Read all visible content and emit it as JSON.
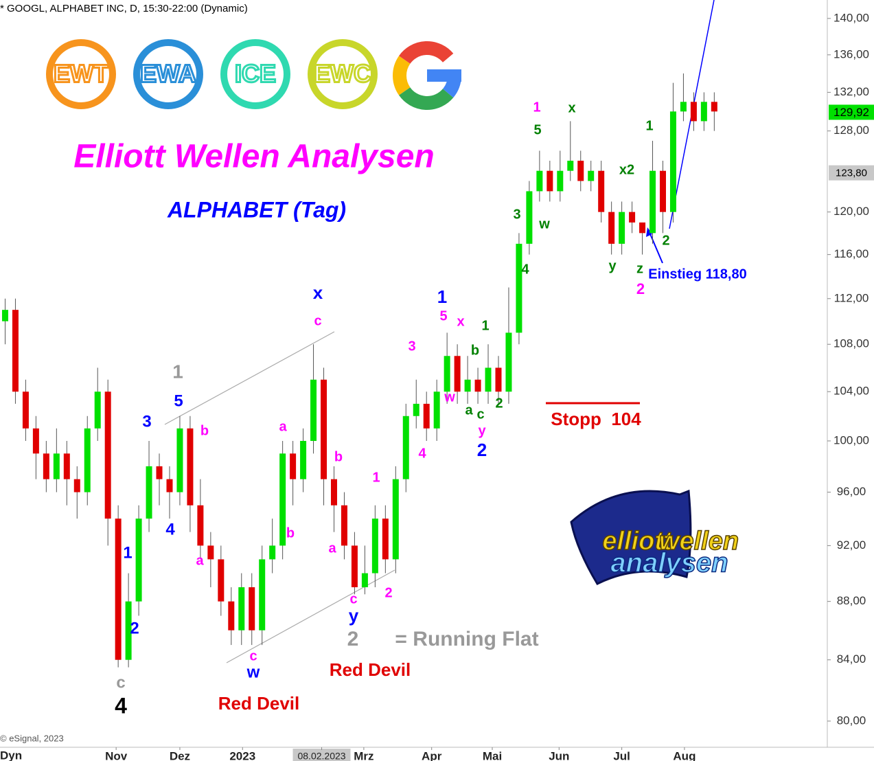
{
  "header": "* GOOGL, ALPHABET INC, D, 15:30-22:00 (Dynamic)",
  "title": "Elliott Wellen Analysen",
  "subtitle": "ALPHABET (Tag)",
  "logos": [
    "EWT",
    "EWA",
    "ICE",
    "EWC"
  ],
  "copyright": "© eSignal, 2023",
  "corner_label": "Dyn",
  "brand": [
    "elliott",
    "wellen",
    "analysen"
  ],
  "chart_data": {
    "type": "candlestick",
    "log_scale": true,
    "up_color": "#00e000",
    "down_color": "#e00000",
    "ylim": [
      78.35,
      142.07
    ],
    "xlim": [
      -0.5,
      80
    ],
    "yticks": [
      {
        "value": 80,
        "label": "80,00"
      },
      {
        "value": 84,
        "label": "84,00"
      },
      {
        "value": 88,
        "label": "88,00"
      },
      {
        "value": 92,
        "label": "92,00"
      },
      {
        "value": 96,
        "label": "96,00"
      },
      {
        "value": 100,
        "label": "100,00"
      },
      {
        "value": 104,
        "label": "104,00"
      },
      {
        "value": 108,
        "label": "108,00"
      },
      {
        "value": 112,
        "label": "112,00"
      },
      {
        "value": 116,
        "label": "116,00"
      },
      {
        "value": 120,
        "label": "120,00"
      },
      {
        "value": 128,
        "label": "128,00"
      },
      {
        "value": 132,
        "label": "132,00"
      },
      {
        "value": 136,
        "label": "136,00"
      },
      {
        "value": 140,
        "label": "140,00"
      }
    ],
    "xticks": [
      {
        "value": 10.8,
        "label": "Nov"
      },
      {
        "value": 17,
        "label": "Dez"
      },
      {
        "value": 23.1,
        "label": "2023"
      },
      {
        "value": 30.8,
        "label": "08.02.2023",
        "highlight": true
      },
      {
        "value": 34.9,
        "label": "Mrz"
      },
      {
        "value": 41.5,
        "label": "Apr"
      },
      {
        "value": 47.4,
        "label": "Mai"
      },
      {
        "value": 53.9,
        "label": "Jun"
      },
      {
        "value": 60,
        "label": "Jul"
      },
      {
        "value": 66.1,
        "label": "Aug"
      }
    ],
    "series": {
      "open": [
        110,
        111,
        104,
        101,
        99,
        97,
        99,
        97,
        96,
        101,
        104,
        94,
        84,
        88,
        94,
        98,
        97,
        96,
        101,
        95,
        92,
        91,
        88,
        86,
        89,
        86,
        91,
        92,
        99,
        97,
        100,
        105,
        97,
        95,
        92,
        89,
        90,
        94,
        91,
        97,
        102,
        103,
        101,
        104,
        107,
        104,
        105,
        104,
        106,
        104,
        109,
        117,
        122,
        124,
        122,
        124,
        125,
        123,
        124,
        120,
        117,
        120,
        119,
        118,
        124,
        120,
        130,
        131,
        129,
        131
      ],
      "high": [
        112,
        112,
        105,
        102,
        100,
        101,
        100,
        98,
        102,
        106,
        105,
        95,
        90,
        95,
        100,
        99,
        98,
        102,
        102,
        97,
        93,
        92,
        89,
        90,
        90,
        92,
        94,
        100,
        100,
        101,
        108,
        106,
        98,
        96,
        93,
        92,
        95,
        95,
        98,
        103,
        105,
        104,
        105,
        109,
        108,
        107,
        106,
        108,
        107,
        113,
        118,
        123,
        126,
        125,
        126,
        129,
        126,
        125,
        125,
        121,
        121,
        121,
        119,
        127,
        125,
        133,
        134,
        132,
        132,
        132
      ],
      "low": [
        108,
        103,
        100,
        97,
        96,
        96,
        95,
        94,
        95,
        100,
        92,
        83.5,
        83.5,
        87,
        93,
        95,
        94,
        95,
        93,
        91,
        89,
        87,
        85,
        85,
        85,
        85,
        90,
        91,
        95,
        96,
        99,
        95,
        93,
        91,
        88.5,
        88.5,
        89,
        90,
        90,
        96,
        101,
        100,
        100,
        103,
        103,
        103,
        103,
        103,
        103,
        103,
        108,
        116,
        121,
        121,
        121,
        123,
        122,
        122,
        119,
        116,
        116,
        118,
        116,
        117,
        118,
        119,
        129,
        128,
        128,
        128
      ],
      "close": [
        111,
        104,
        101,
        99,
        97,
        99,
        97,
        96,
        101,
        104,
        94,
        84,
        88,
        94,
        98,
        97,
        96,
        101,
        95,
        92,
        91,
        88,
        86,
        89,
        86,
        91,
        92,
        99,
        97,
        100,
        105,
        97,
        95,
        92,
        89,
        90,
        94,
        91,
        97,
        102,
        103,
        101,
        104,
        107,
        104,
        105,
        104,
        106,
        104,
        109,
        117,
        122,
        124,
        122,
        124,
        125,
        123,
        124,
        120,
        117,
        120,
        119,
        118,
        124,
        120,
        130,
        131,
        129,
        131,
        130
      ]
    },
    "current_price": {
      "value": 129.92,
      "label": "129,92",
      "color": "#00e000"
    },
    "marker_price": {
      "value": 123.8,
      "label": "123,80",
      "color": "#c8c8c8"
    },
    "annotations": [
      {
        "text": "c",
        "color": "#999999"
      },
      {
        "text": "4",
        "color": "#000000"
      },
      {
        "text": "1",
        "color": "#0000ff"
      },
      {
        "text": "2",
        "color": "#0000ff"
      },
      {
        "text": "3",
        "color": "#0000ff"
      },
      {
        "text": "5",
        "color": "#0000ff"
      },
      {
        "text": "1",
        "color": "#999999"
      },
      {
        "text": "4",
        "color": "#0000ff"
      },
      {
        "text": "b",
        "color": "#ff00ff"
      },
      {
        "text": "a",
        "color": "#ff00ff"
      },
      {
        "text": "c",
        "color": "#ff00ff"
      },
      {
        "text": "w",
        "color": "#0000ff"
      },
      {
        "text": "a",
        "color": "#ff00ff"
      },
      {
        "text": "b",
        "color": "#ff00ff"
      },
      {
        "text": "x",
        "color": "#0000ff"
      },
      {
        "text": "c",
        "color": "#ff00ff"
      },
      {
        "text": "b",
        "color": "#ff00ff"
      },
      {
        "text": "a",
        "color": "#ff00ff"
      },
      {
        "text": "c",
        "color": "#ff00ff"
      },
      {
        "text": "y",
        "color": "#0000ff"
      },
      {
        "text": "1",
        "color": "#ff00ff"
      },
      {
        "text": "2",
        "color": "#ff00ff"
      },
      {
        "text": "3",
        "color": "#ff00ff"
      },
      {
        "text": "4",
        "color": "#ff00ff"
      },
      {
        "text": "1",
        "color": "#0000ff"
      },
      {
        "text": "5",
        "color": "#ff00ff"
      },
      {
        "text": "x",
        "color": "#ff00ff"
      },
      {
        "text": "w",
        "color": "#ff00ff"
      },
      {
        "text": "1",
        "color": "#008000"
      },
      {
        "text": "b",
        "color": "#008000"
      },
      {
        "text": "a",
        "color": "#008000"
      },
      {
        "text": "c",
        "color": "#008000"
      },
      {
        "text": "y",
        "color": "#ff00ff"
      },
      {
        "text": "2",
        "color": "#0000ff"
      },
      {
        "text": "2",
        "color": "#008000"
      },
      {
        "text": "3",
        "color": "#008000"
      },
      {
        "text": "4",
        "color": "#008000"
      },
      {
        "text": "w",
        "color": "#008000"
      },
      {
        "text": "5",
        "color": "#008000"
      },
      {
        "text": "1",
        "color": "#ff00ff"
      },
      {
        "text": "x",
        "color": "#008000"
      },
      {
        "text": "y",
        "color": "#008000"
      },
      {
        "text": "z",
        "color": "#008000"
      },
      {
        "text": "2",
        "color": "#ff00ff"
      },
      {
        "text": "x2",
        "color": "#008000"
      },
      {
        "text": "1",
        "color": "#008000"
      },
      {
        "text": "2",
        "color": "#008000"
      },
      {
        "text": "Einstieg 118,80",
        "color": "#0000ff"
      },
      {
        "text": "Stopp  104",
        "color": "#e00000"
      },
      {
        "text": "Red Devil",
        "color": "#e00000"
      },
      {
        "text": "Red Devil",
        "color": "#e00000"
      },
      {
        "text": "2",
        "color": "#999999"
      },
      {
        "text": "= Running Flat",
        "color": "#999999"
      }
    ]
  }
}
